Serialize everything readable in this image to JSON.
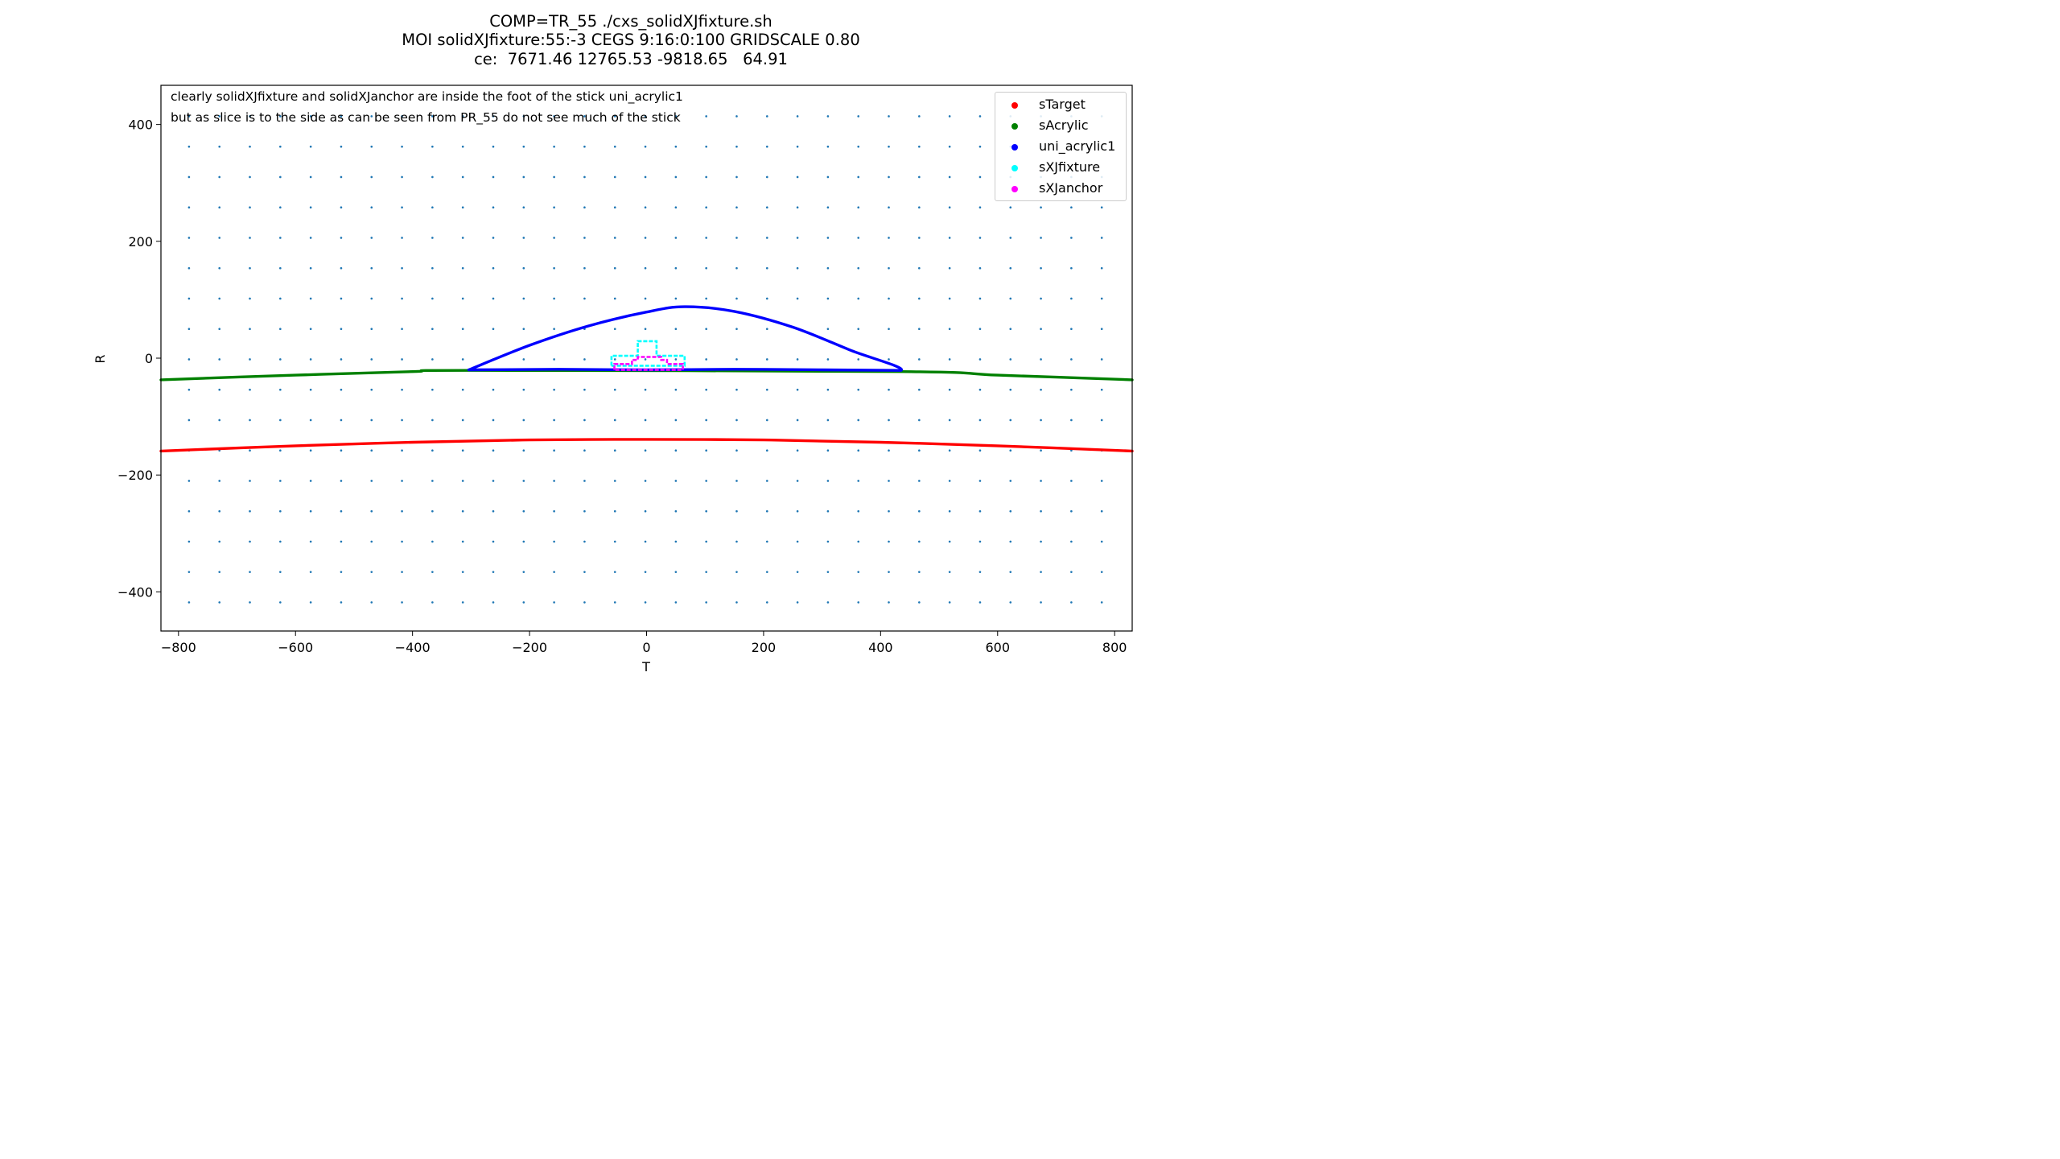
{
  "title_lines": [
    "COMP=TR_55 ./cxs_solidXJfixture.sh",
    "MOI solidXJfixture:55:-3 CEGS 9:16:0:100 GRIDSCALE 0.80",
    "ce:  7671.46 12765.53 -9818.65   64.91"
  ],
  "annotations": [
    "clearly solidXJfixture and solidXJanchor are inside the foot of the stick uni_acrylic1",
    "but as slice is to the side as can be seen from PR_55 do not see much of the stick"
  ],
  "chart_data": {
    "type": "scatter",
    "xlabel": "T",
    "ylabel": "R",
    "xlim": [
      -830,
      830
    ],
    "ylim": [
      -467,
      467
    ],
    "xticks": [
      -800,
      -600,
      -400,
      -200,
      0,
      200,
      400,
      600,
      800
    ],
    "yticks": [
      -400,
      -200,
      0,
      200,
      400
    ],
    "xtick_labels": [
      "−800",
      "−600",
      "−400",
      "−200",
      "0",
      "200",
      "400",
      "600",
      "800"
    ],
    "ytick_labels": [
      "−400",
      "−200",
      "0",
      "200",
      "400"
    ],
    "legend_position": "top-right",
    "grid_points": {
      "color": "#1f77b4",
      "x_start": -782,
      "x_step": 52,
      "x_count": 31,
      "y_start": -418,
      "y_step": 52,
      "y_count": 17,
      "x_offset_alt_rows": 0
    },
    "series": [
      {
        "name": "sTarget",
        "color": "#ff0000",
        "shape": "arc",
        "points": [
          [
            -830,
            -159
          ],
          [
            -600,
            -150
          ],
          [
            -400,
            -144
          ],
          [
            -200,
            -140
          ],
          [
            0,
            -139
          ],
          [
            200,
            -140
          ],
          [
            400,
            -144
          ],
          [
            600,
            -150
          ],
          [
            830,
            -159
          ]
        ]
      },
      {
        "name": "sAcrylic",
        "color": "#008000",
        "shape": "arc",
        "points": [
          [
            -830,
            -37
          ],
          [
            -600,
            -29
          ],
          [
            -400,
            -23
          ],
          [
            -304,
            -21
          ],
          [
            435,
            -23
          ],
          [
            600,
            -29
          ],
          [
            830,
            -37
          ]
        ]
      },
      {
        "name": "uni_acrylic1",
        "color": "#0000ff",
        "shape": "dome",
        "points": [
          [
            -304,
            -20
          ],
          [
            -200,
            22
          ],
          [
            -100,
            55
          ],
          [
            0,
            79
          ],
          [
            65,
            88
          ],
          [
            150,
            80
          ],
          [
            250,
            53
          ],
          [
            350,
            13
          ],
          [
            435,
            -21
          ],
          [
            300,
            -20
          ],
          [
            150,
            -19
          ],
          [
            0,
            -20
          ],
          [
            -150,
            -19
          ],
          [
            -304,
            -20
          ]
        ]
      },
      {
        "name": "sXJfixture",
        "color": "#00ffff",
        "shape": "outline",
        "points": [
          [
            -60,
            -13
          ],
          [
            -60,
            4
          ],
          [
            -15,
            4
          ],
          [
            -15,
            29
          ],
          [
            17,
            29
          ],
          [
            17,
            4
          ],
          [
            65,
            4
          ],
          [
            65,
            -13
          ],
          [
            -60,
            -13
          ]
        ]
      },
      {
        "name": "sXJanchor",
        "color": "#ff00ff",
        "shape": "outline",
        "points": [
          [
            -55,
            -20
          ],
          [
            -55,
            -10
          ],
          [
            -25,
            -10
          ],
          [
            -25,
            -3
          ],
          [
            -15,
            -3
          ],
          [
            -15,
            2
          ],
          [
            25,
            2
          ],
          [
            25,
            -3
          ],
          [
            35,
            -3
          ],
          [
            35,
            -10
          ],
          [
            62,
            -10
          ],
          [
            62,
            -20
          ],
          [
            -55,
            -20
          ]
        ]
      }
    ]
  }
}
